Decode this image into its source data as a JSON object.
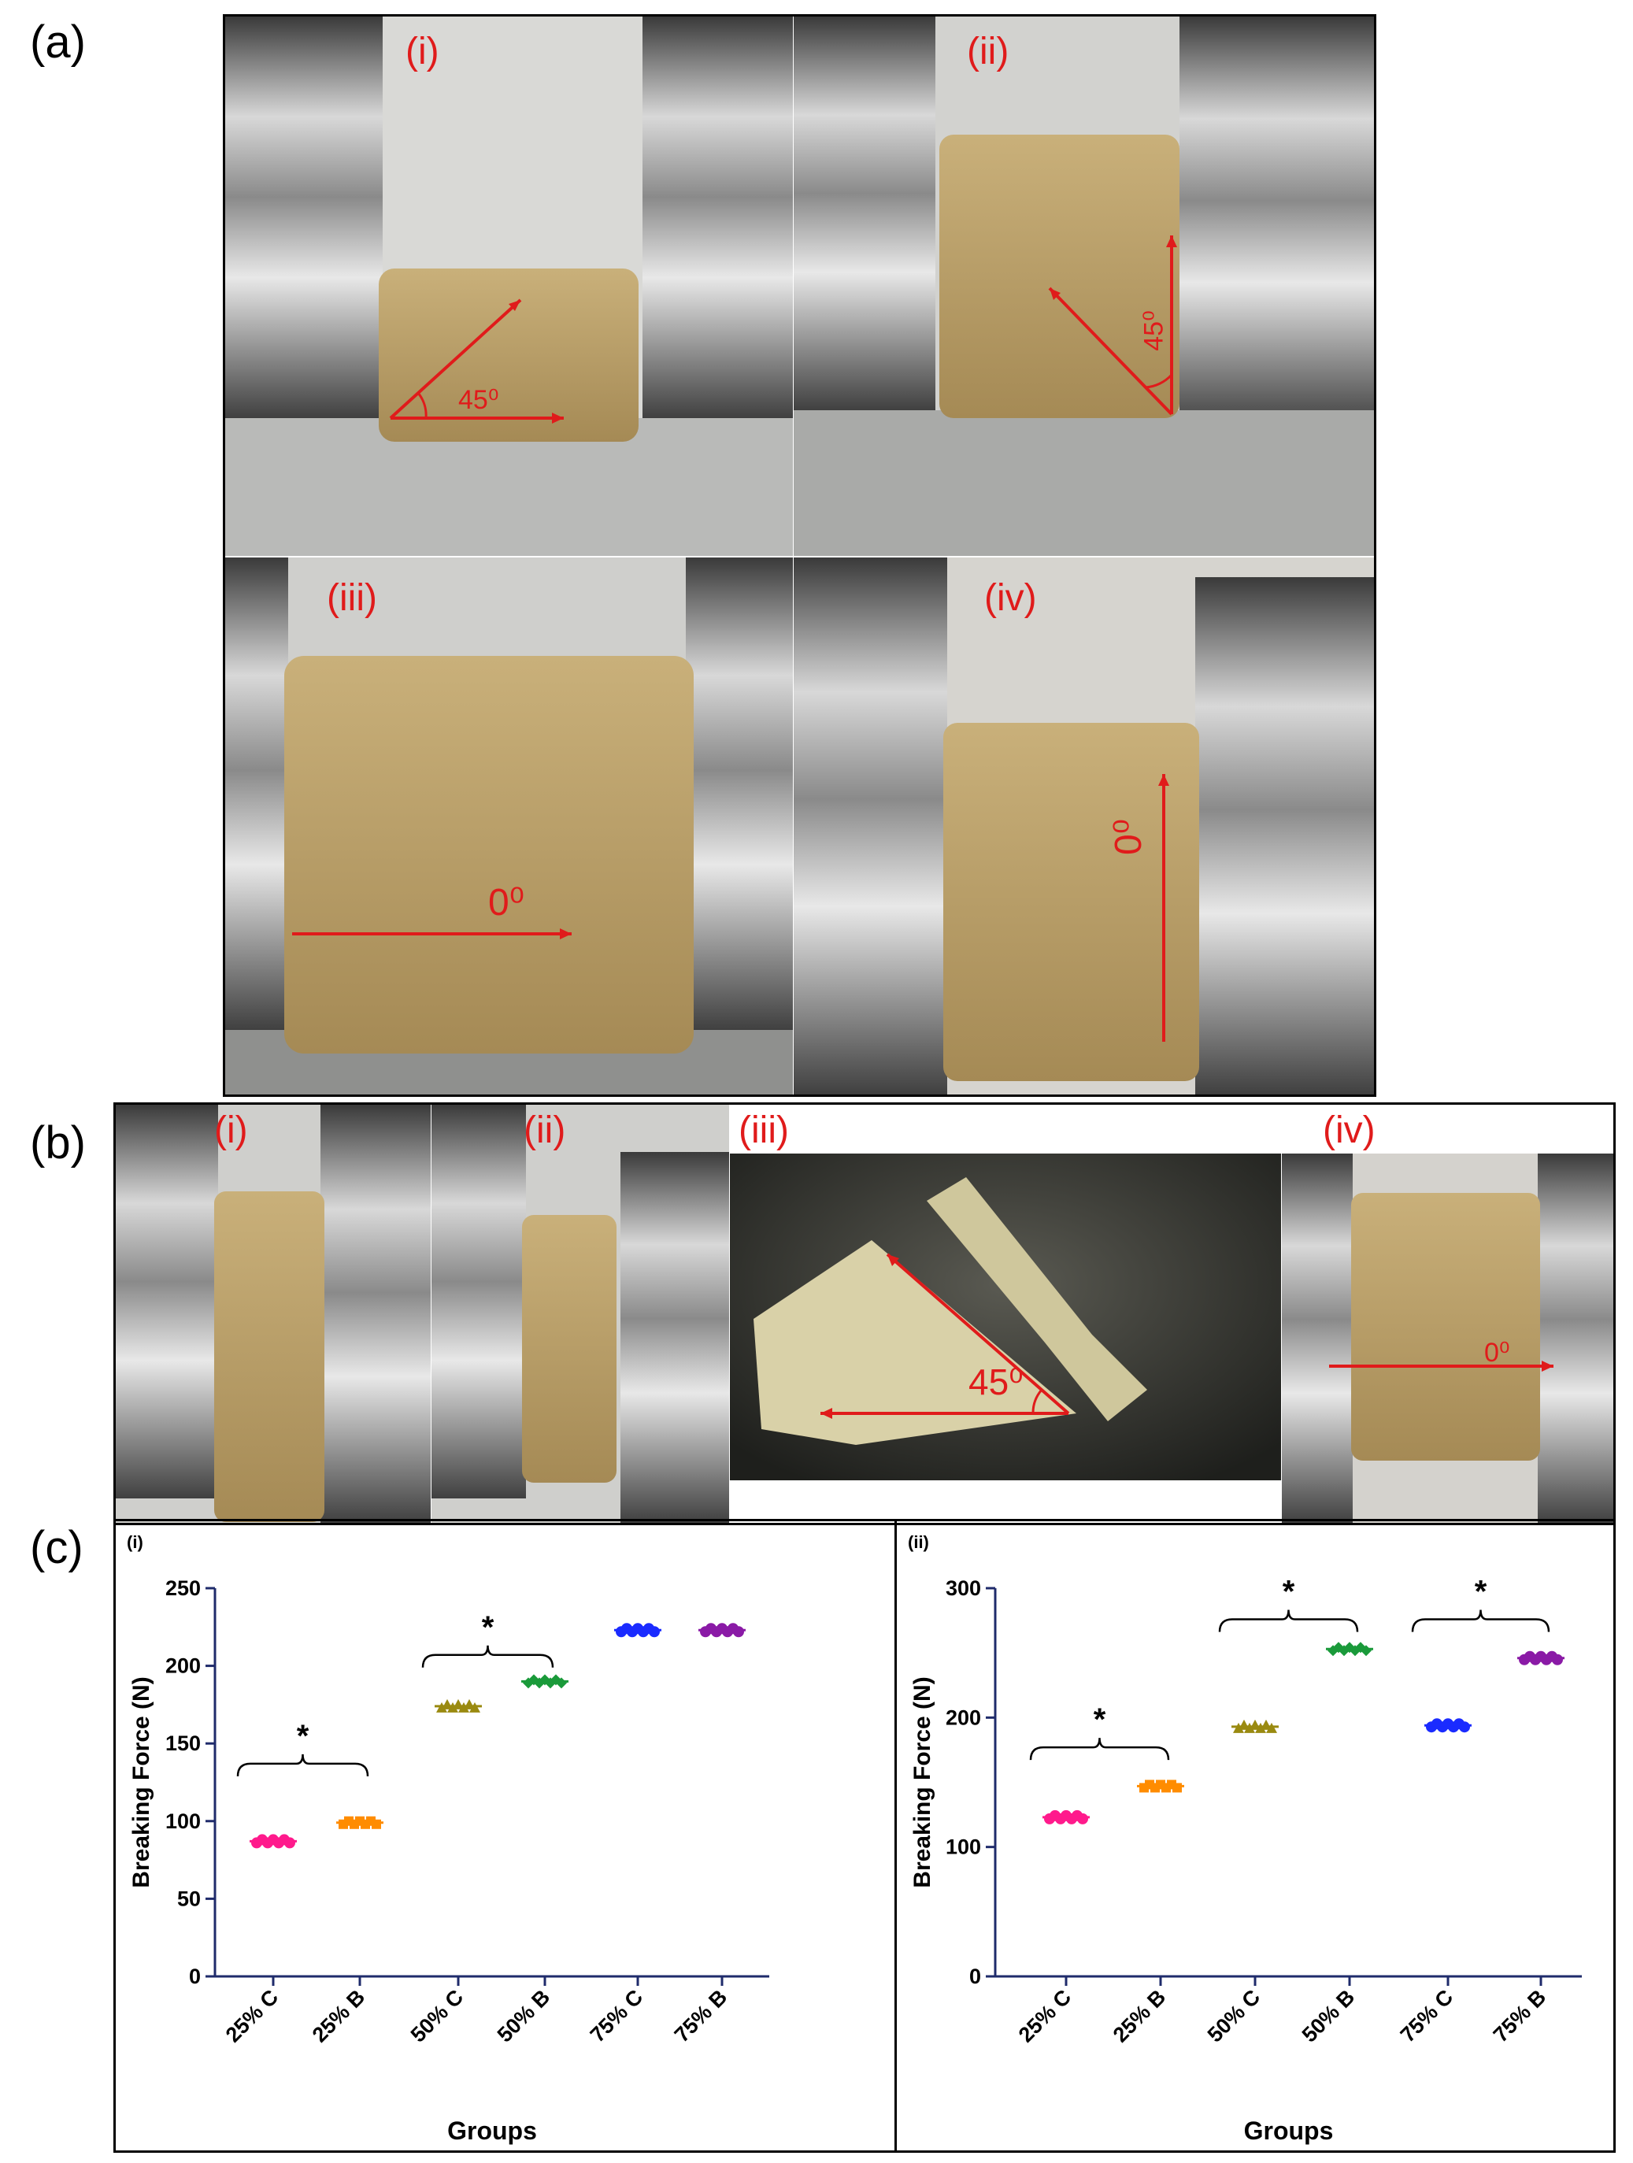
{
  "panels": {
    "a": {
      "letter": "(a)",
      "images": [
        {
          "label": "(i)",
          "angle_label": "45⁰"
        },
        {
          "label": "(ii)",
          "angle_label": "45⁰"
        },
        {
          "label": "(iii)",
          "angle_label": "0⁰"
        },
        {
          "label": "(iv)",
          "angle_label": "0⁰"
        }
      ]
    },
    "b": {
      "letter": "(b)",
      "images": [
        {
          "label": "(i)"
        },
        {
          "label": "(ii)"
        },
        {
          "label": "(iii)",
          "angle_label": "45⁰"
        },
        {
          "label": "(iv)",
          "angle_label": "0⁰"
        }
      ]
    },
    "c": {
      "letter": "(c)"
    }
  },
  "colors": {
    "annotation_red": "#e01b1b",
    "axis_navy": "#1f2b6b",
    "25C": "#ff1a8c",
    "25B": "#ff8c00",
    "50C": "#9a8a10",
    "50B": "#1a9a3a",
    "75C": "#1a2bff",
    "75B": "#8a1aa6"
  },
  "chart_data": [
    {
      "type": "scatter",
      "panel_label": "(i)",
      "title": "",
      "xlabel": "Groups",
      "ylabel": "Breaking  Force (N)",
      "ylim": [
        0,
        250
      ],
      "yticks": [
        0,
        50,
        100,
        150,
        200,
        250
      ],
      "categories": [
        "25% C",
        "25% B",
        "50% C",
        "50% B",
        "75% C",
        "75% B"
      ],
      "values": [
        87,
        99,
        174,
        190,
        223,
        223
      ],
      "significance": [
        {
          "between": [
            "25% C",
            "25% B"
          ],
          "level": 137,
          "mark": "*"
        },
        {
          "between": [
            "50% C",
            "50% B"
          ],
          "level": 207,
          "mark": "*"
        }
      ]
    },
    {
      "type": "scatter",
      "panel_label": "(ii)",
      "title": "",
      "xlabel": "Groups",
      "ylabel": "Breaking Force (N)",
      "ylim": [
        0,
        300
      ],
      "yticks": [
        0,
        100,
        200,
        300
      ],
      "categories": [
        "25% C",
        "25% B",
        "50% C",
        "50% B",
        "75% C",
        "75% B"
      ],
      "values": [
        123,
        147,
        193,
        253,
        194,
        246
      ],
      "significance": [
        {
          "between": [
            "25% C",
            "25% B"
          ],
          "level": 177,
          "mark": "*"
        },
        {
          "between": [
            "50% C",
            "50% B"
          ],
          "level": 276,
          "mark": "*"
        },
        {
          "between": [
            "75% C",
            "75% B"
          ],
          "level": 276,
          "mark": "*"
        }
      ]
    }
  ]
}
